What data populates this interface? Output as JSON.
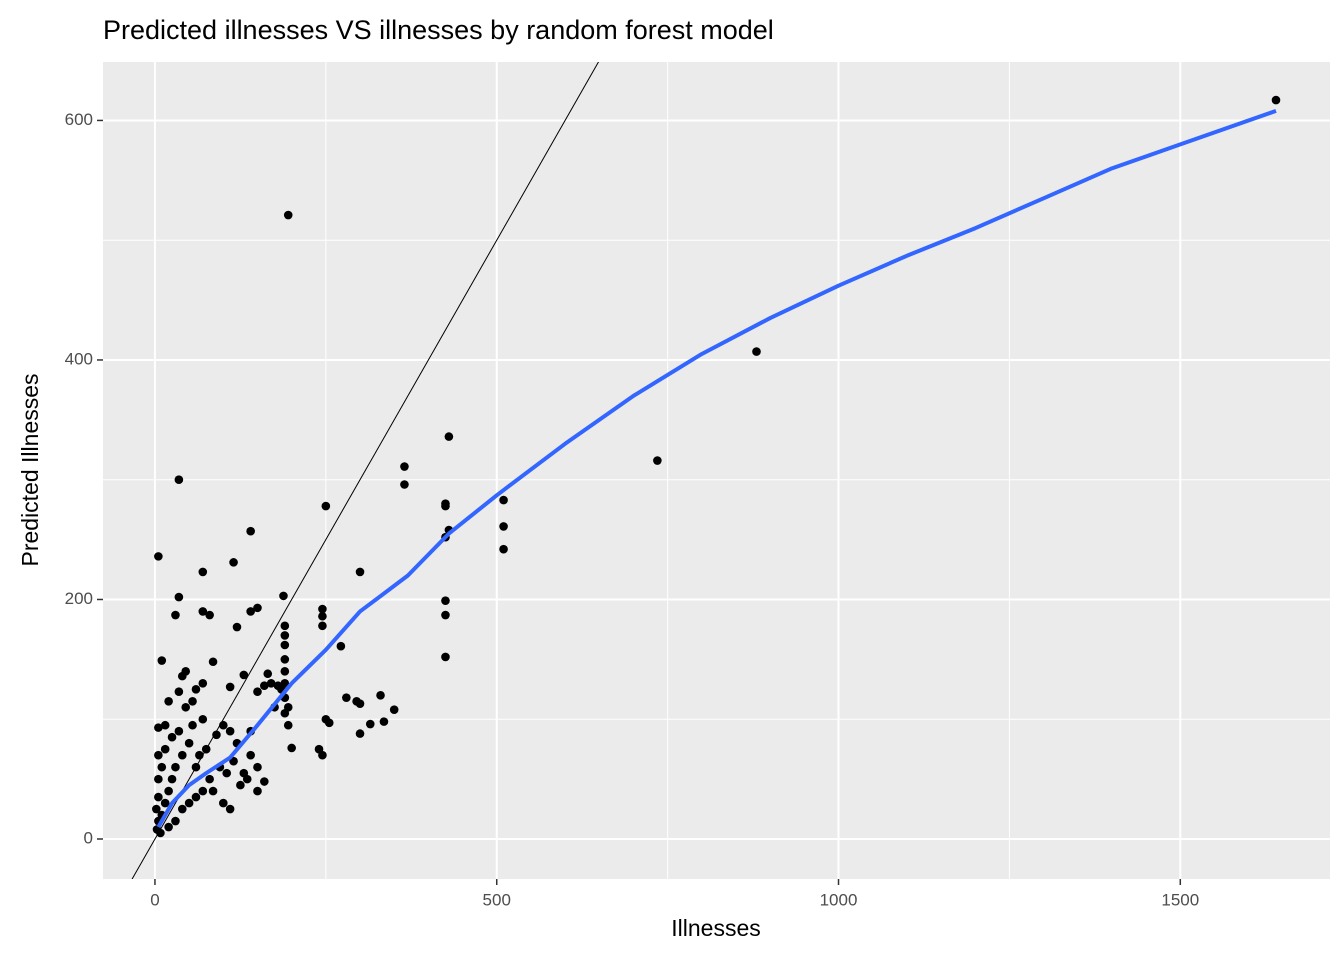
{
  "chart_data": {
    "type": "scatter",
    "title": "Predicted illnesses VS illnesses by random forest model",
    "x_label": "Illnesses",
    "y_label": "Predicted Illnesses",
    "xlim": [
      -76,
      1719
    ],
    "ylim": [
      -33.4,
      648.8
    ],
    "xticks": [
      0,
      500,
      1000,
      1500
    ],
    "yticks": [
      0,
      200,
      400,
      600
    ],
    "x_minor_ticks": [
      250,
      750,
      1250
    ],
    "y_minor_ticks": [
      100,
      300,
      500
    ],
    "grid": true,
    "color": "#000000",
    "x": [
      1640,
      880,
      735,
      195,
      5,
      35,
      140,
      115,
      250,
      365,
      365,
      430,
      425,
      425,
      430,
      425,
      510,
      510,
      510,
      425,
      425,
      425,
      300,
      245,
      245,
      245,
      272,
      188,
      190,
      190,
      190,
      190,
      190,
      190,
      190,
      190,
      195,
      195,
      200,
      240,
      245,
      250,
      255,
      280,
      295,
      300,
      315,
      330,
      335,
      350,
      300,
      70,
      35,
      30,
      70,
      80,
      120,
      140,
      150,
      85,
      10,
      40,
      45,
      60,
      70,
      55,
      35,
      110,
      130,
      150,
      165,
      170,
      180,
      20,
      15,
      5,
      45,
      70,
      90,
      100,
      110,
      120,
      140,
      150,
      160,
      150,
      100,
      110,
      85,
      60,
      50,
      40,
      30,
      25,
      20,
      15,
      10,
      5,
      3,
      8,
      20,
      30,
      40,
      50,
      60,
      70,
      80,
      10,
      5,
      5,
      5,
      2,
      15,
      25,
      35,
      55,
      65,
      75,
      95,
      105,
      115,
      125,
      130,
      135,
      140,
      160,
      175,
      185
    ],
    "y": [
      617,
      407,
      316,
      521,
      236,
      300,
      257,
      231,
      278,
      311,
      296,
      336,
      280,
      278,
      258,
      252,
      283,
      261,
      242,
      199,
      187,
      152,
      223,
      192,
      186,
      178,
      161,
      203,
      178,
      170,
      162,
      150,
      140,
      130,
      118,
      105,
      110,
      95,
      76,
      75,
      70,
      100,
      97,
      118,
      115,
      88,
      96,
      120,
      98,
      108,
      113,
      223,
      202,
      187,
      190,
      187,
      177,
      190,
      193,
      148,
      149,
      136,
      140,
      125,
      130,
      115,
      123,
      127,
      137,
      123,
      138,
      130,
      128,
      115,
      95,
      93,
      110,
      100,
      87,
      95,
      90,
      80,
      70,
      60,
      48,
      40,
      30,
      25,
      40,
      60,
      80,
      70,
      60,
      50,
      40,
      30,
      20,
      15,
      8,
      5,
      10,
      15,
      25,
      30,
      35,
      40,
      50,
      60,
      70,
      50,
      35,
      25,
      75,
      85,
      90,
      95,
      70,
      75,
      60,
      55,
      65,
      45,
      55,
      50,
      90,
      128,
      110,
      125
    ],
    "reference_line": {
      "slope": 1,
      "intercept": 0,
      "color": "#000000"
    },
    "smooth": {
      "color": "#3366FF",
      "x": [
        5,
        25,
        50,
        75,
        110,
        150,
        200,
        250,
        300,
        370,
        430,
        500,
        600,
        700,
        800,
        900,
        1000,
        1100,
        1200,
        1300,
        1400,
        1500,
        1640
      ],
      "y": [
        10,
        30,
        45,
        55,
        68,
        95,
        130,
        158,
        190,
        220,
        255,
        287,
        330,
        370,
        405,
        435,
        462,
        487,
        510,
        535,
        560,
        580,
        608
      ]
    }
  }
}
